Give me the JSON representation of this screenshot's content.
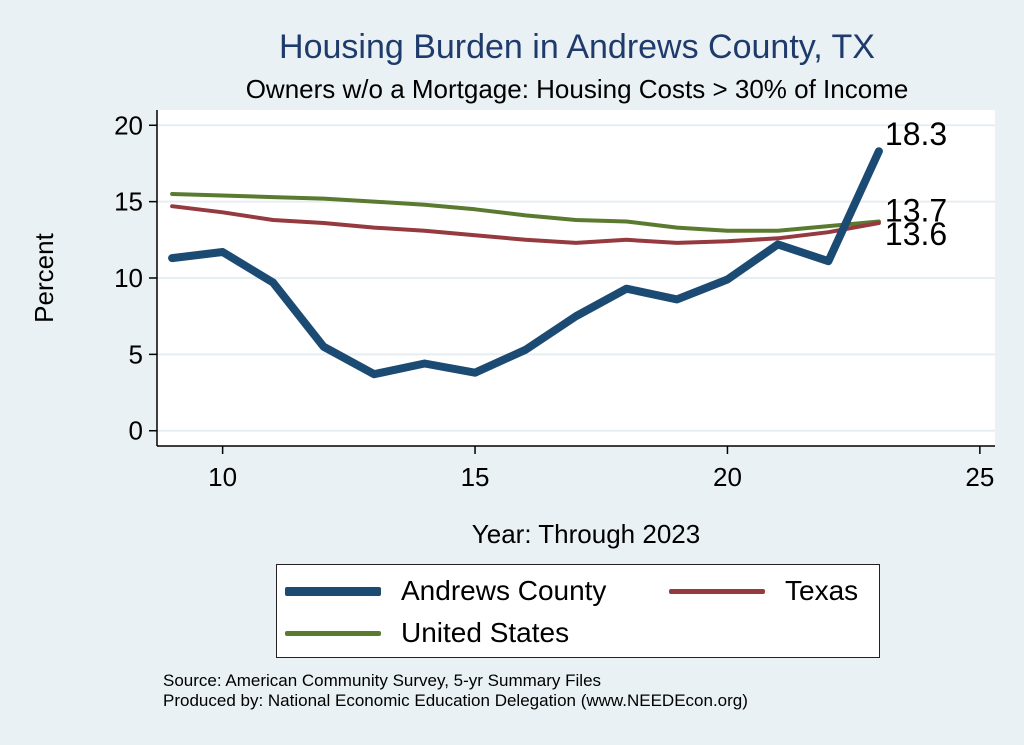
{
  "title": "Housing Burden in Andrews County, TX",
  "subtitle": "Owners w/o a Mortgage: Housing Costs > 30% of Income",
  "source_lines": [
    "Source: American Community Survey, 5-yr Summary Files",
    "Produced by: National Economic Education Delegation (www.NEEDEcon.org)"
  ],
  "colors": {
    "background": "#eaf1f4",
    "plot_background": "#ffffff",
    "andrews": "#1b4a72",
    "texas": "#953a3f",
    "united_states": "#5a7b2f",
    "title": "#1f3b6b",
    "grid": "#e6eef2"
  },
  "chart_data": {
    "type": "line",
    "title": "Housing Burden in Andrews County, TX",
    "subtitle": "Owners w/o a Mortgage: Housing Costs > 30% of Income",
    "xlabel": "Year: Through 2023",
    "ylabel": "Percent",
    "xlim": [
      8.7,
      25.3
    ],
    "ylim": [
      -1,
      21
    ],
    "xticks": [
      10,
      15,
      20,
      25
    ],
    "yticks": [
      0,
      5,
      10,
      15,
      20
    ],
    "grid": true,
    "legend_position": "bottom",
    "x": [
      9,
      10,
      11,
      12,
      13,
      14,
      15,
      16,
      17,
      18,
      19,
      20,
      21,
      22,
      23
    ],
    "series": [
      {
        "name": "Andrews County",
        "color": "#1b4a72",
        "width": 8,
        "values": [
          11.3,
          11.7,
          9.7,
          5.5,
          3.7,
          4.4,
          3.8,
          5.3,
          7.5,
          9.3,
          8.6,
          9.9,
          12.2,
          11.1,
          18.3
        ],
        "end_label": "18.3"
      },
      {
        "name": "Texas",
        "color": "#953a3f",
        "width": 4,
        "values": [
          14.7,
          14.3,
          13.8,
          13.6,
          13.3,
          13.1,
          12.8,
          12.5,
          12.3,
          12.5,
          12.3,
          12.4,
          12.6,
          13.0,
          13.6
        ],
        "end_label": "13.6"
      },
      {
        "name": "United States",
        "color": "#5a7b2f",
        "width": 4,
        "values": [
          15.5,
          15.4,
          15.3,
          15.2,
          15.0,
          14.8,
          14.5,
          14.1,
          13.8,
          13.7,
          13.3,
          13.1,
          13.1,
          13.4,
          13.7
        ],
        "end_label": "13.7"
      }
    ]
  },
  "legend": {
    "items": [
      "Andrews County",
      "Texas",
      "United States"
    ]
  }
}
